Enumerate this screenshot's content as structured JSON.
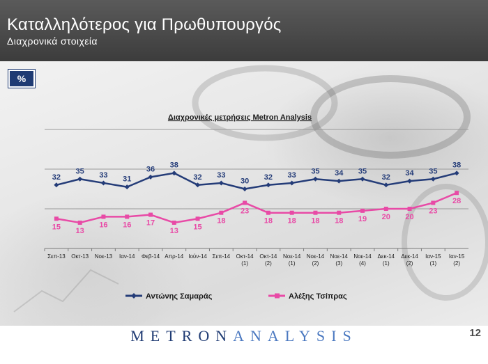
{
  "header": {
    "title": "Καταλληλότερος για Πρωθυπουργός",
    "subtitle": "Διαχρονικά στοιχεία"
  },
  "unit_badge": "%",
  "footer": {
    "logo_part1": "METRON",
    "logo_part2": "ANALYSIS",
    "page_number": "12"
  },
  "colors": {
    "samaras": "#243c78",
    "tsipras": "#e84aa6",
    "header_bg": "#4a4a4a",
    "badge_bg": "#1f3b73"
  },
  "chart_data": {
    "type": "line",
    "title": "Διαχρονικές μετρήσεις Metron Analysis",
    "categories": [
      [
        "Σεπ-13"
      ],
      [
        "Οκτ-13"
      ],
      [
        "Νοε-13"
      ],
      [
        "Ιαν-14"
      ],
      [
        "Φεβ-14"
      ],
      [
        "Απρ-14"
      ],
      [
        "Ιούν-14"
      ],
      [
        "Σεπ-14"
      ],
      [
        "Οκτ-14",
        "(1)"
      ],
      [
        "Οκτ-14",
        "(2)"
      ],
      [
        "Νοε-14",
        "(1)"
      ],
      [
        "Νοε-14",
        "(2)"
      ],
      [
        "Νοε-14",
        "(3)"
      ],
      [
        "Νοε-14",
        "(4)"
      ],
      [
        "Δεκ-14",
        "(1)"
      ],
      [
        "Δεκ-14",
        "(2)"
      ],
      [
        "Ιαν-15",
        "(1)"
      ],
      [
        "Ιαν-15",
        "(2)"
      ]
    ],
    "series": [
      {
        "name": "Αντώνης Σαμαράς",
        "color": "#243c78",
        "values": [
          32,
          35,
          33,
          31,
          36,
          38,
          32,
          33,
          30,
          32,
          33,
          35,
          34,
          35,
          32,
          34,
          35,
          38
        ]
      },
      {
        "name": "Αλέξης Τσίπρας",
        "color": "#e84aa6",
        "values": [
          15,
          13,
          16,
          16,
          17,
          13,
          15,
          18,
          23,
          18,
          18,
          18,
          18,
          19,
          20,
          20,
          23,
          28
        ]
      }
    ],
    "ylim": [
      0,
      60
    ],
    "legend_position": "bottom",
    "grid": true
  }
}
